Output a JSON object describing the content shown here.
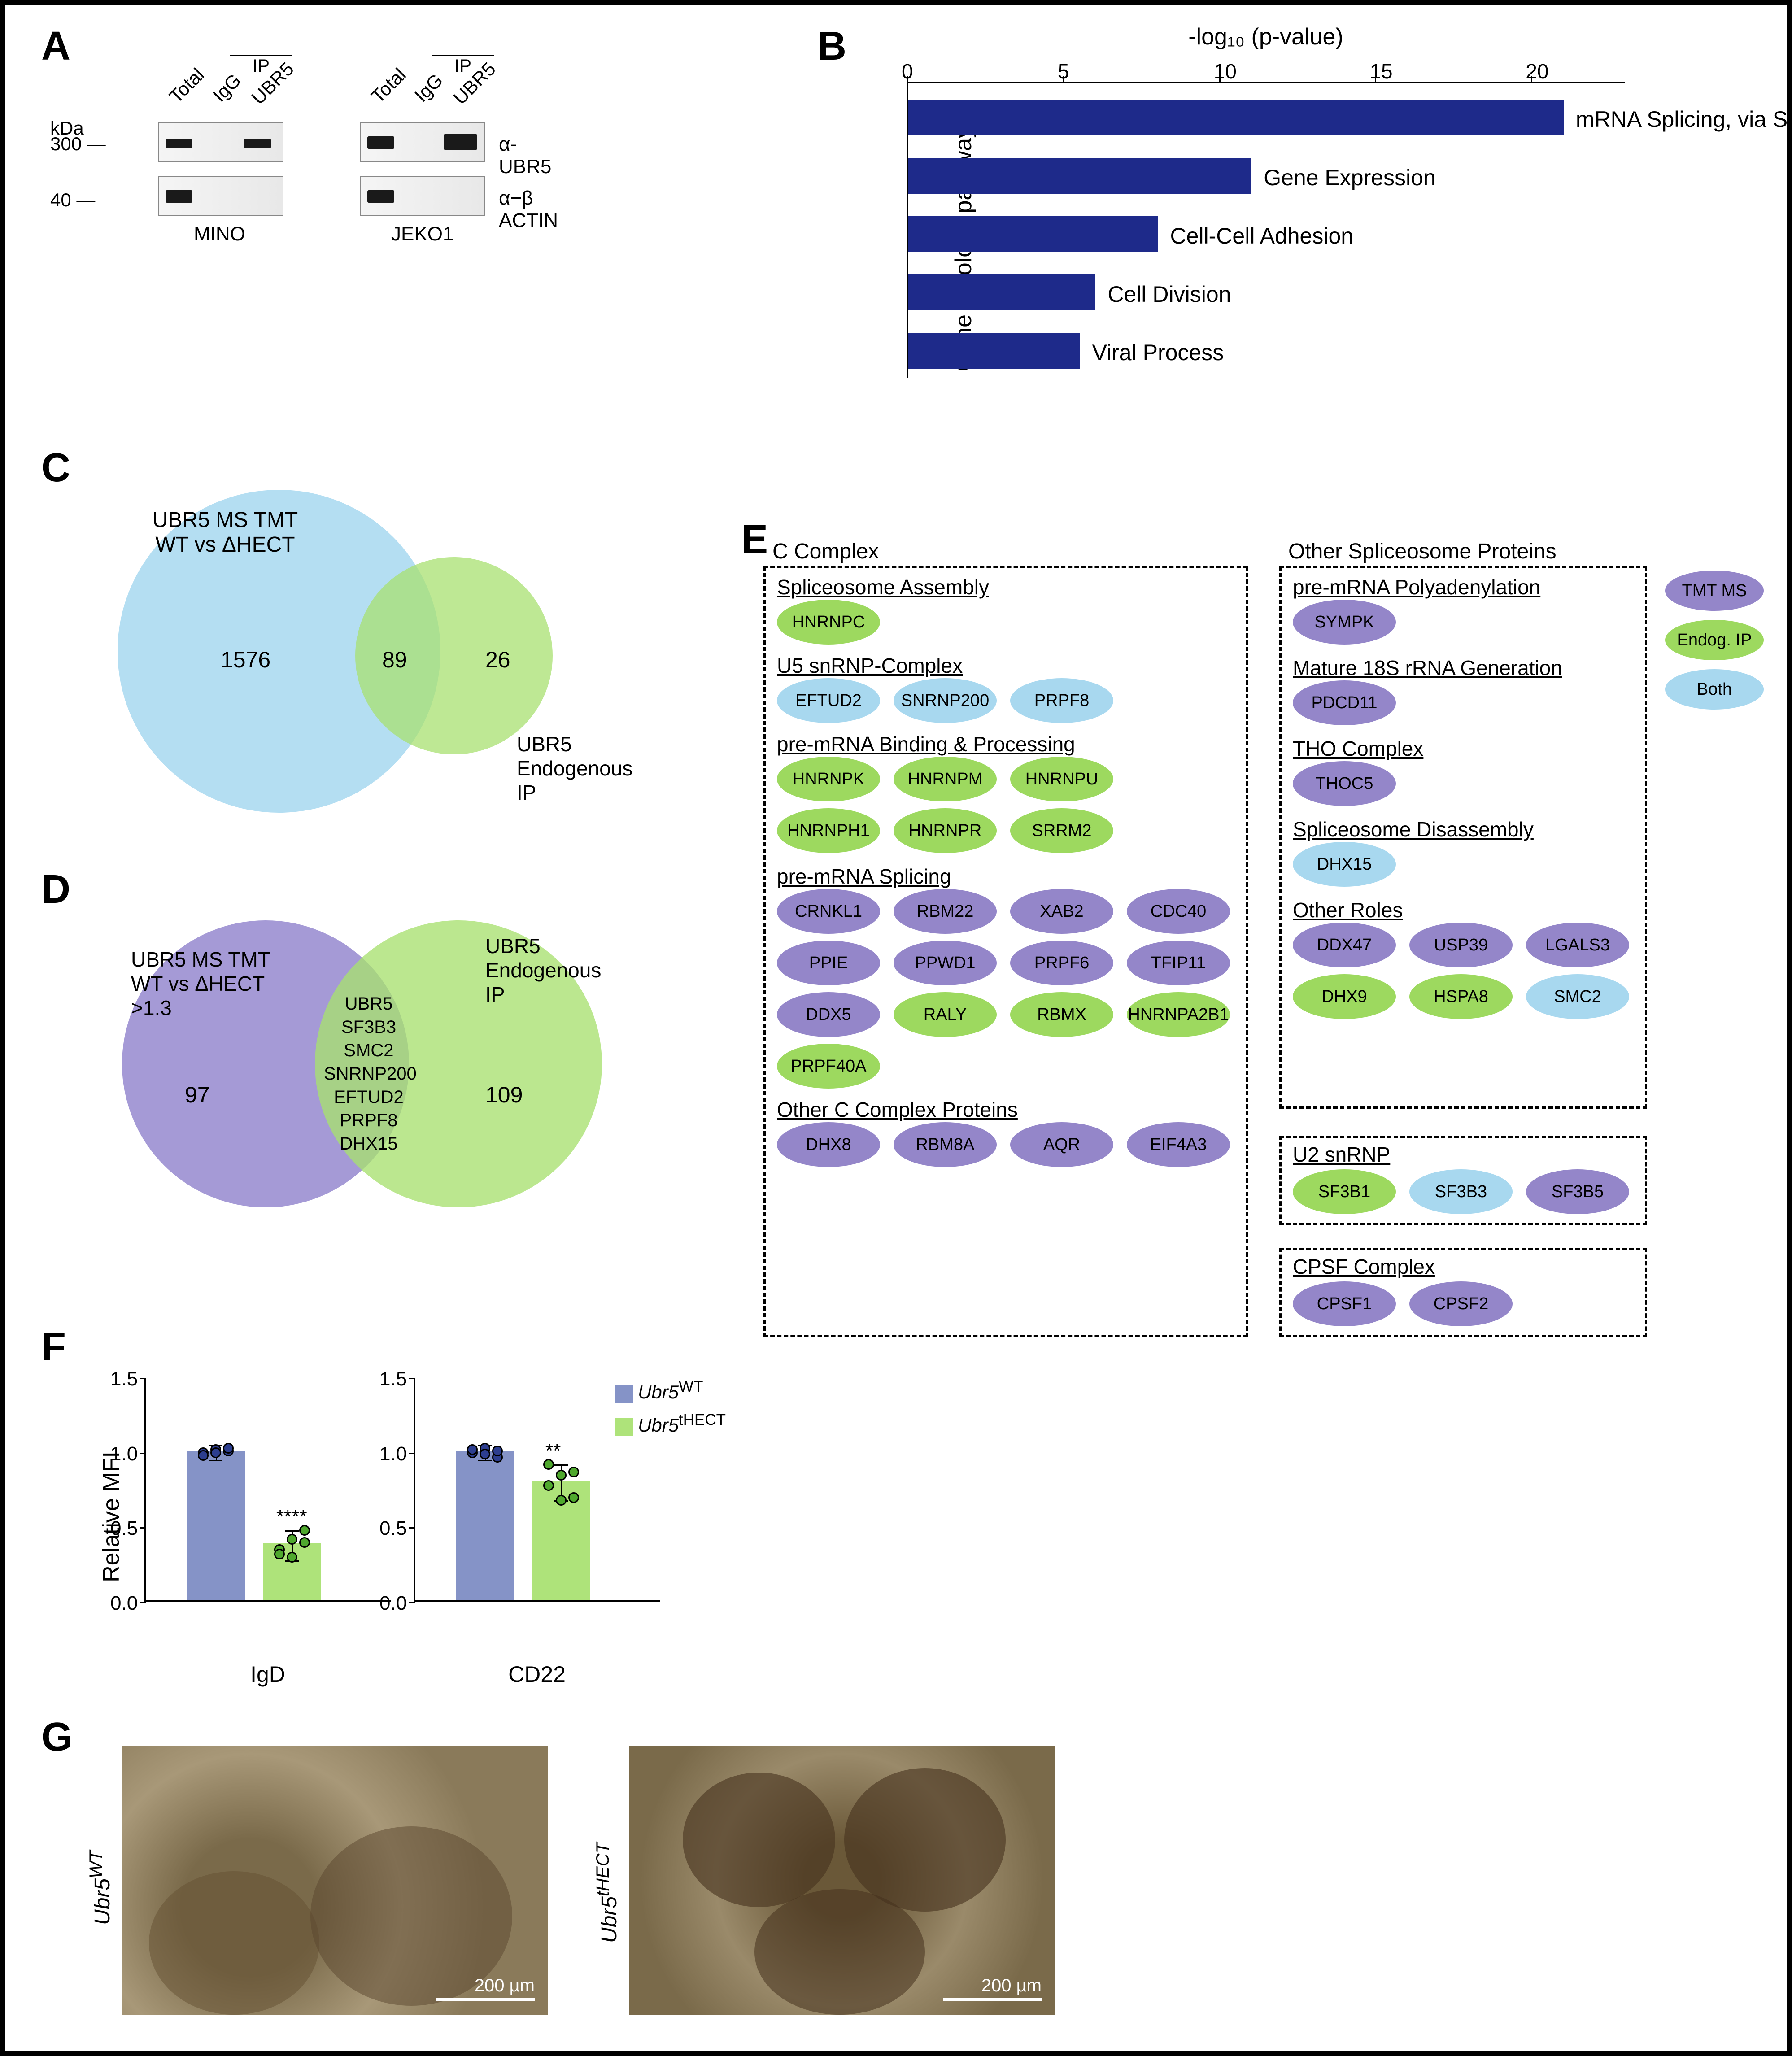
{
  "panelLabels": {
    "A": "A",
    "B": "B",
    "C": "C",
    "D": "D",
    "E": "E",
    "F": "F",
    "G": "G"
  },
  "colors": {
    "barNavy": "#1e2a8a",
    "vennBlue": "#a7d8f0",
    "vennGreen": "#a8e070",
    "vennPurple": "#9b8fd1",
    "ovalPurple": "#9486c9",
    "ovalGreen": "#9dd95f",
    "ovalBlue": "#a8d8ef",
    "fBarBlue": "#8593c7",
    "fBarGreen": "#aee37a",
    "fPointBlue": "#2d3e8f",
    "fPointGreen": "#4fa82e"
  },
  "panelA": {
    "kda": [
      "kDa",
      "300 —",
      "40 —"
    ],
    "lanes": [
      "Total",
      "IgG",
      "UBR5"
    ],
    "ipLabel": "IP",
    "antibodies": [
      "α-UBR5",
      "α−β ACTIN"
    ],
    "cells": [
      "MINO",
      "JEKO1"
    ]
  },
  "panelB": {
    "xtitle": "-log₁₀ (p-value)",
    "ytitle": "Gene ontology pathways",
    "xticks": [
      0,
      5,
      10,
      15,
      20
    ],
    "xmax": 23,
    "bars": [
      {
        "label": "mRNA Splicing, via Spliceosome",
        "value": 21
      },
      {
        "label": "Gene Expression",
        "value": 11
      },
      {
        "label": "Cell-Cell Adhesion",
        "value": 8
      },
      {
        "label": "Cell Division",
        "value": 6
      },
      {
        "label": "Viral Process",
        "value": 5.5
      }
    ]
  },
  "panelC": {
    "left": {
      "title": "UBR5 MS TMT\nWT vs ΔHECT",
      "n": "1576"
    },
    "overlap": "89",
    "right": {
      "title": "UBR5\nEndogenous IP",
      "n": "26"
    }
  },
  "panelD": {
    "left": {
      "title": "UBR5 MS TMT\nWT vs ΔHECT\n>1.3",
      "n": "97"
    },
    "overlapList": [
      "UBR5",
      "SF3B3",
      "SMC2",
      "SNRNP200",
      "EFTUD2",
      "PRPF8",
      "DHX15"
    ],
    "right": {
      "title": "UBR5\nEndogenous IP",
      "n": "109"
    }
  },
  "panelE": {
    "legend": [
      {
        "label": "TMT MS",
        "color": "ovalPurple"
      },
      {
        "label": "Endog. IP",
        "color": "ovalGreen"
      },
      {
        "label": "Both",
        "color": "ovalBlue"
      }
    ],
    "boxes": {
      "cComplex": {
        "title": "C Complex",
        "sections": [
          {
            "title": "Spliceosome Assembly",
            "items": [
              {
                "n": "HNRNPC",
                "c": "ovalGreen"
              }
            ]
          },
          {
            "title": "U5 snRNP-Complex",
            "items": [
              {
                "n": "EFTUD2",
                "c": "ovalBlue"
              },
              {
                "n": "SNRNP200",
                "c": "ovalBlue"
              },
              {
                "n": "PRPF8",
                "c": "ovalBlue"
              }
            ]
          },
          {
            "title": "pre-mRNA Binding & Processing",
            "items": [
              {
                "n": "HNRNPK",
                "c": "ovalGreen"
              },
              {
                "n": "HNRNPM",
                "c": "ovalGreen"
              },
              {
                "n": "HNRNPU",
                "c": "ovalGreen"
              },
              {
                "n": "HNRNPH1",
                "c": "ovalGreen"
              },
              {
                "n": "HNRNPR",
                "c": "ovalGreen"
              },
              {
                "n": "SRRM2",
                "c": "ovalGreen"
              }
            ]
          },
          {
            "title": "pre-mRNA Splicing",
            "items": [
              {
                "n": "CRNKL1",
                "c": "ovalPurple"
              },
              {
                "n": "RBM22",
                "c": "ovalPurple"
              },
              {
                "n": "XAB2",
                "c": "ovalPurple"
              },
              {
                "n": "CDC40",
                "c": "ovalPurple"
              },
              {
                "n": "PPIE",
                "c": "ovalPurple"
              },
              {
                "n": "PPWD1",
                "c": "ovalPurple"
              },
              {
                "n": "PRPF6",
                "c": "ovalPurple"
              },
              {
                "n": "TFIP11",
                "c": "ovalPurple"
              },
              {
                "n": "DDX5",
                "c": "ovalPurple"
              },
              {
                "n": "RALY",
                "c": "ovalGreen"
              },
              {
                "n": "RBMX",
                "c": "ovalGreen"
              },
              {
                "n": "HNRNPA2B1",
                "c": "ovalGreen"
              },
              {
                "n": "PRPF40A",
                "c": "ovalGreen"
              }
            ]
          },
          {
            "title": "Other C Complex Proteins",
            "items": [
              {
                "n": "DHX8",
                "c": "ovalPurple"
              },
              {
                "n": "RBM8A",
                "c": "ovalPurple"
              },
              {
                "n": "AQR",
                "c": "ovalPurple"
              },
              {
                "n": "EIF4A3",
                "c": "ovalPurple"
              }
            ]
          }
        ]
      },
      "other": {
        "title": "Other Spliceosome Proteins",
        "sections": [
          {
            "title": "pre-mRNA Polyadenylation",
            "items": [
              {
                "n": "SYMPK",
                "c": "ovalPurple"
              }
            ]
          },
          {
            "title": "Mature 18S rRNA Generation",
            "items": [
              {
                "n": "PDCD11",
                "c": "ovalPurple"
              }
            ]
          },
          {
            "title": "THO Complex",
            "items": [
              {
                "n": "THOC5",
                "c": "ovalPurple"
              }
            ]
          },
          {
            "title": "Spliceosome Disassembly",
            "items": [
              {
                "n": "DHX15",
                "c": "ovalBlue"
              }
            ]
          },
          {
            "title": "Other Roles",
            "items": [
              {
                "n": "DDX47",
                "c": "ovalPurple"
              },
              {
                "n": "USP39",
                "c": "ovalPurple"
              },
              {
                "n": "LGALS3",
                "c": "ovalPurple"
              },
              {
                "n": "DHX9",
                "c": "ovalGreen"
              },
              {
                "n": "HSPA8",
                "c": "ovalGreen"
              },
              {
                "n": "SMC2",
                "c": "ovalBlue"
              }
            ]
          }
        ]
      },
      "u2": {
        "title": "U2 snRNP",
        "items": [
          {
            "n": "SF3B1",
            "c": "ovalGreen"
          },
          {
            "n": "SF3B3",
            "c": "ovalBlue"
          },
          {
            "n": "SF3B5",
            "c": "ovalPurple"
          }
        ]
      },
      "cpsf": {
        "title": "CPSF Complex",
        "items": [
          {
            "n": "CPSF1",
            "c": "ovalPurple"
          },
          {
            "n": "CPSF2",
            "c": "ovalPurple"
          }
        ]
      }
    }
  },
  "panelF": {
    "ytitle": "Relative MFI",
    "yticks": [
      0.0,
      0.5,
      1.0,
      1.5
    ],
    "ymax": 1.5,
    "legend": [
      {
        "label": "Ubr5",
        "sup": "WT",
        "color": "fBarBlue"
      },
      {
        "label": "Ubr5",
        "sup": "tHECT",
        "color": "fBarGreen"
      }
    ],
    "charts": [
      {
        "xlabel": "IgD",
        "bars": [
          {
            "v": 1.0,
            "err": 0.05,
            "sig": "****",
            "pts": [
              1.0,
              1.02,
              1.01,
              0.98,
              1.0,
              1.03
            ]
          },
          {
            "v": 0.38,
            "err": 0.1,
            "pts": [
              0.35,
              0.3,
              0.48,
              0.32,
              0.42,
              0.4
            ]
          }
        ]
      },
      {
        "xlabel": "CD22",
        "bars": [
          {
            "v": 1.0,
            "err": 0.05,
            "sig": "**",
            "pts": [
              1.0,
              1.03,
              0.97,
              1.02,
              0.99,
              1.01
            ]
          },
          {
            "v": 0.8,
            "err": 0.12,
            "pts": [
              0.92,
              0.85,
              0.7,
              0.78,
              0.68,
              0.87
            ]
          }
        ]
      }
    ]
  },
  "panelG": {
    "labels": [
      "Ubr5",
      "Ubr5"
    ],
    "sups": [
      "WT",
      "tHECT"
    ],
    "scale": "200 µm"
  }
}
